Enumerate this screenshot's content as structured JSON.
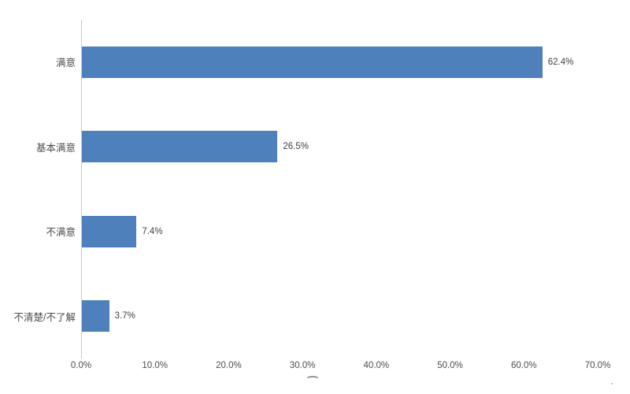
{
  "chart_data": {
    "type": "bar",
    "orientation": "horizontal",
    "title": "",
    "categories": [
      "满意",
      "基本满意",
      "不满意",
      "不清楚/不了解"
    ],
    "values": [
      62.4,
      26.5,
      7.4,
      3.7
    ],
    "value_labels": [
      "62.4%",
      "26.5%",
      "7.4%",
      "3.7%"
    ],
    "x_ticks": [
      "0.0%",
      "10.0%",
      "20.0%",
      "30.0%",
      "40.0%",
      "50.0%",
      "60.0%",
      "70.0%"
    ],
    "xlim": [
      0,
      70
    ],
    "xlabel": "",
    "ylabel": "",
    "grid": false,
    "legend": false,
    "bar_color": "#4e80bc",
    "axis_line_color": "#c9c9c9",
    "text_color": "#4d4d4d",
    "value_label_color": "#404040"
  }
}
